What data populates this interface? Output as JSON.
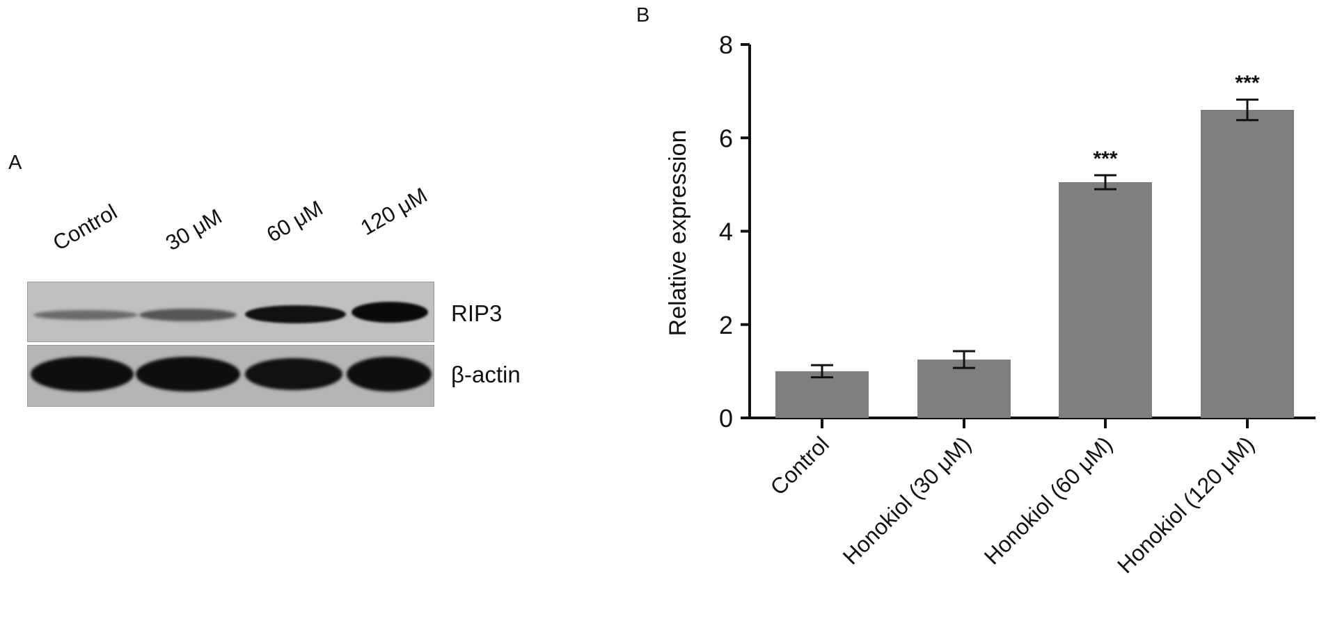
{
  "panel_a": {
    "label": "A",
    "lanes": [
      "Control",
      "30 μM",
      "60 μM",
      "120 μM"
    ],
    "proteins": [
      "RIP3",
      "β-actin"
    ]
  },
  "panel_b": {
    "label": "B"
  },
  "chart_data": {
    "type": "bar",
    "title": "",
    "xlabel": "",
    "ylabel": "Relative expression",
    "categories": [
      "Control",
      "Honokiol (30 μM)",
      "Honokiol (60 μM)",
      "Honokiol (120 μM)"
    ],
    "values": [
      1.0,
      1.25,
      5.05,
      6.6
    ],
    "errors": [
      0.13,
      0.18,
      0.15,
      0.22
    ],
    "annotations": [
      "",
      "",
      "***",
      "***"
    ],
    "ylim": [
      0,
      8
    ],
    "yticks": [
      "0",
      "2",
      "4",
      "6",
      "8"
    ],
    "grid": false,
    "bar_color": "#7f7f7f"
  }
}
